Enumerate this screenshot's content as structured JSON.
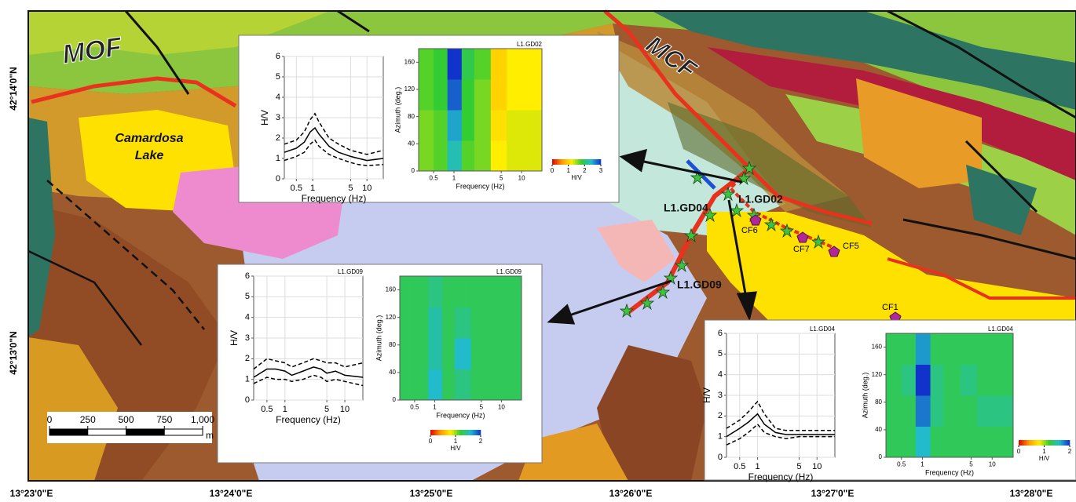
{
  "map": {
    "faults": [
      "MOF",
      "MCF"
    ],
    "lake": "Camardosa Lake",
    "stations": [
      "L1.GD02",
      "L1.GD04",
      "L1.GD09"
    ],
    "sites": [
      "CF6",
      "CF7",
      "CF5",
      "CF1"
    ],
    "latitudes": [
      "42°14'0\"N",
      "42°13'0\"N"
    ],
    "longitudes": [
      "13°23'0\"E",
      "13°24'0\"E",
      "13°25'0\"E",
      "13°26'0\"E",
      "13°27'0\"E",
      "13°28'0\"E"
    ],
    "scale": {
      "ticks": [
        0,
        250,
        500,
        750,
        {
          "value": 1000,
          "label": "1,000"
        }
      ],
      "unit": "m"
    }
  },
  "chart_data": [
    {
      "type": "line",
      "x_label": "Frequency (Hz)",
      "y_label": "H/V",
      "log_x": true,
      "grid": true,
      "xlim": [
        0.3,
        20
      ],
      "xticks": [
        0.5,
        1,
        5,
        10
      ],
      "ylim": [
        0,
        6
      ],
      "yticks": [
        0,
        1,
        2,
        3,
        4,
        5,
        6
      ],
      "x": [
        0.3,
        0.5,
        0.7,
        0.9,
        1.1,
        1.3,
        2,
        3,
        5,
        7,
        10,
        20
      ],
      "series": [
        {
          "color": "#000000",
          "dashed": false,
          "values": [
            1.3,
            1.5,
            1.8,
            2.3,
            2.5,
            2.2,
            1.6,
            1.3,
            1.1,
            1.0,
            0.9,
            1.0
          ]
        },
        {
          "color": "#000000",
          "dashed": true,
          "values": [
            1.7,
            1.9,
            2.3,
            2.9,
            3.2,
            2.8,
            2.0,
            1.7,
            1.4,
            1.3,
            1.2,
            1.4
          ]
        },
        {
          "color": "#000000",
          "dashed": true,
          "values": [
            0.9,
            1.1,
            1.3,
            1.7,
            1.9,
            1.6,
            1.2,
            1.0,
            0.8,
            0.7,
            0.65,
            0.7
          ]
        }
      ]
    },
    {
      "type": "heatmap",
      "title": "L1.GD02",
      "x_label": "Frequency (Hz)",
      "y_label": "Azimuth (deg.)",
      "log_x": true,
      "xlim": [
        0.3,
        20
      ],
      "xticks": [
        0.5,
        1,
        5,
        10
      ],
      "ylim": [
        0,
        180
      ],
      "yticks": [
        0,
        40,
        80,
        120,
        160
      ],
      "xbins": [
        0.3,
        0.5,
        0.8,
        1.3,
        2,
        3.5,
        6,
        20
      ],
      "ybins": [
        0,
        45,
        90,
        135,
        180
      ],
      "values": [
        [
          1.6,
          1.7,
          2.3,
          1.7,
          1.6,
          1.2,
          1.3
        ],
        [
          1.6,
          1.7,
          2.5,
          1.8,
          1.6,
          1.1,
          1.3
        ],
        [
          1.7,
          1.8,
          2.8,
          1.8,
          1.6,
          1.0,
          1.2
        ],
        [
          1.7,
          1.8,
          3.0,
          1.9,
          1.7,
          1.0,
          1.2
        ]
      ],
      "colorbar": {
        "lim": [
          0,
          3
        ],
        "ticks": [
          0,
          1,
          2,
          3
        ],
        "label": "H/V",
        "colors": [
          "#e00000",
          "#ff9900",
          "#ffee00",
          "#33cc33",
          "#22bbcc",
          "#1133cc"
        ]
      }
    },
    {
      "type": "line",
      "title": "L1.GD09",
      "x_label": "Frequency (Hz)",
      "y_label": "H/V",
      "log_x": true,
      "grid": true,
      "xlim": [
        0.3,
        20
      ],
      "xticks": [
        0.5,
        1,
        5,
        10
      ],
      "ylim": [
        0,
        6
      ],
      "yticks": [
        0,
        1,
        2,
        3,
        4,
        5,
        6
      ],
      "x": [
        0.3,
        0.5,
        0.7,
        1,
        1.3,
        2,
        3,
        4,
        5,
        7,
        10,
        20
      ],
      "series": [
        {
          "color": "#000000",
          "dashed": false,
          "values": [
            1.1,
            1.5,
            1.5,
            1.4,
            1.2,
            1.4,
            1.6,
            1.5,
            1.3,
            1.4,
            1.2,
            1.1
          ]
        },
        {
          "color": "#000000",
          "dashed": true,
          "values": [
            1.5,
            2.0,
            1.9,
            1.8,
            1.6,
            1.8,
            2.0,
            1.9,
            1.8,
            1.8,
            1.6,
            1.8
          ]
        },
        {
          "color": "#000000",
          "dashed": true,
          "values": [
            0.8,
            1.1,
            1.0,
            1.0,
            0.9,
            1.0,
            1.2,
            1.1,
            0.9,
            1.0,
            0.9,
            0.7
          ]
        }
      ]
    },
    {
      "type": "heatmap",
      "title": "L1.GD09",
      "x_label": "Frequency (Hz)",
      "y_label": "Azimuth (deg.)",
      "log_x": true,
      "xlim": [
        0.3,
        20
      ],
      "xticks": [
        0.5,
        1,
        5,
        10
      ],
      "ylim": [
        0,
        180
      ],
      "yticks": [
        0,
        40,
        80,
        120,
        160
      ],
      "xbins": [
        0.3,
        0.5,
        0.8,
        1.3,
        2,
        3.5,
        6,
        20
      ],
      "ybins": [
        0,
        45,
        90,
        135,
        180
      ],
      "values": [
        [
          1.3,
          1.3,
          1.6,
          1.3,
          1.4,
          1.3,
          1.3
        ],
        [
          1.3,
          1.3,
          1.5,
          1.3,
          1.6,
          1.3,
          1.3
        ],
        [
          1.3,
          1.3,
          1.5,
          1.3,
          1.4,
          1.3,
          1.3
        ],
        [
          1.3,
          1.3,
          1.4,
          1.3,
          1.3,
          1.3,
          1.3
        ]
      ],
      "colorbar": {
        "lim": [
          0,
          2
        ],
        "ticks": [
          0,
          1,
          2
        ],
        "label": "H/V",
        "colors": [
          "#e00000",
          "#ff9900",
          "#ffee00",
          "#33cc33",
          "#22bbcc",
          "#1133cc"
        ]
      }
    },
    {
      "type": "line",
      "title": "L1.GD04",
      "x_label": "Frequency (Hz)",
      "y_label": "H/V",
      "log_x": true,
      "grid": true,
      "xlim": [
        0.3,
        20
      ],
      "xticks": [
        0.5,
        1,
        5,
        10
      ],
      "ylim": [
        0,
        6
      ],
      "yticks": [
        0,
        1,
        2,
        3,
        4,
        5,
        6
      ],
      "x": [
        0.3,
        0.5,
        0.7,
        1,
        1.3,
        2,
        3,
        5,
        10,
        20
      ],
      "series": [
        {
          "color": "#000000",
          "dashed": false,
          "values": [
            1.0,
            1.4,
            1.7,
            2.1,
            1.6,
            1.2,
            1.1,
            1.1,
            1.1,
            1.1
          ]
        },
        {
          "color": "#000000",
          "dashed": true,
          "values": [
            1.4,
            1.8,
            2.2,
            2.7,
            2.1,
            1.4,
            1.3,
            1.3,
            1.3,
            1.3
          ]
        },
        {
          "color": "#000000",
          "dashed": true,
          "values": [
            0.6,
            0.9,
            1.2,
            1.6,
            1.2,
            1.0,
            0.9,
            1.0,
            1.0,
            1.0
          ]
        }
      ]
    },
    {
      "type": "heatmap",
      "title": "L1.GD04",
      "x_label": "Frequency (Hz)",
      "y_label": "Azimuth (deg.)",
      "log_x": true,
      "xlim": [
        0.3,
        20
      ],
      "xticks": [
        0.5,
        1,
        5,
        10
      ],
      "ylim": [
        0,
        180
      ],
      "yticks": [
        0,
        40,
        80,
        120,
        160
      ],
      "xbins": [
        0.3,
        0.5,
        0.8,
        1.3,
        2,
        3.5,
        6,
        20
      ],
      "ybins": [
        0,
        45,
        90,
        135,
        180
      ],
      "values": [
        [
          1.3,
          1.3,
          1.6,
          1.3,
          1.3,
          1.3,
          1.3
        ],
        [
          1.3,
          1.3,
          1.8,
          1.4,
          1.3,
          1.3,
          1.4
        ],
        [
          1.3,
          1.4,
          2.0,
          1.4,
          1.3,
          1.4,
          1.3
        ],
        [
          1.3,
          1.3,
          1.7,
          1.3,
          1.3,
          1.3,
          1.3
        ]
      ],
      "colorbar": {
        "lim": [
          0,
          2
        ],
        "ticks": [
          0,
          1,
          2
        ],
        "label": "H/V",
        "colors": [
          "#e00000",
          "#ff9900",
          "#ffee00",
          "#33cc33",
          "#22bbcc",
          "#1133cc"
        ]
      }
    }
  ]
}
